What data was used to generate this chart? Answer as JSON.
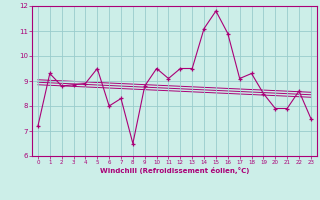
{
  "title": "",
  "xlabel": "Windchill (Refroidissement éolien,°C)",
  "ylabel": "",
  "bg_color": "#cceee8",
  "line_color": "#aa0077",
  "grid_color": "#99cccc",
  "xlim": [
    -0.5,
    23.5
  ],
  "ylim": [
    6,
    12
  ],
  "xticks": [
    0,
    1,
    2,
    3,
    4,
    5,
    6,
    7,
    8,
    9,
    10,
    11,
    12,
    13,
    14,
    15,
    16,
    17,
    18,
    19,
    20,
    21,
    22,
    23
  ],
  "yticks": [
    6,
    7,
    8,
    9,
    10,
    11,
    12
  ],
  "series": [
    [
      0,
      7.2
    ],
    [
      1,
      9.3
    ],
    [
      2,
      8.8
    ],
    [
      3,
      8.85
    ],
    [
      4,
      8.9
    ],
    [
      5,
      9.5
    ],
    [
      6,
      8.0
    ],
    [
      7,
      8.3
    ],
    [
      8,
      6.5
    ],
    [
      9,
      8.8
    ],
    [
      10,
      9.5
    ],
    [
      11,
      9.1
    ],
    [
      12,
      9.5
    ],
    [
      13,
      9.5
    ],
    [
      14,
      11.1
    ],
    [
      15,
      11.8
    ],
    [
      16,
      10.9
    ],
    [
      17,
      9.1
    ],
    [
      18,
      9.3
    ],
    [
      19,
      8.5
    ],
    [
      20,
      7.9
    ],
    [
      21,
      7.9
    ],
    [
      22,
      8.6
    ],
    [
      23,
      7.5
    ]
  ],
  "trend_lines": [
    {
      "x": [
        0,
        23
      ],
      "y": [
        9.05,
        8.55
      ]
    },
    {
      "x": [
        0,
        23
      ],
      "y": [
        8.95,
        8.45
      ]
    },
    {
      "x": [
        0,
        23
      ],
      "y": [
        8.85,
        8.35
      ]
    }
  ]
}
